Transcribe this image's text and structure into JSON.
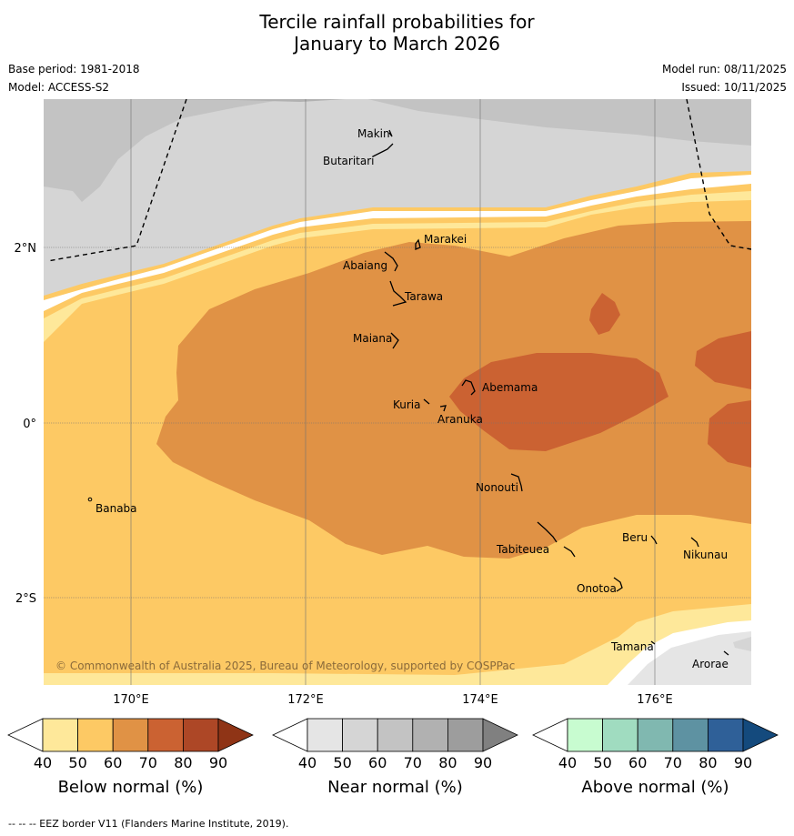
{
  "header": {
    "title_line1": "Tercile rainfall probabilities for",
    "title_line2": "January to March 2026",
    "base_period": "Base period: 1981-2018",
    "model": "Model: ACCESS-S2",
    "model_run": "Model run: 08/11/2025",
    "issued": "Issued: 10/11/2025"
  },
  "map": {
    "lat_labels": [
      "2°N",
      "0°",
      "2°S"
    ],
    "lon_labels": [
      "170°E",
      "172°E",
      "174°E",
      "176°E"
    ],
    "islands": [
      "Makin",
      "Butaritari",
      "Marakei",
      "Abaiang",
      "Tarawa",
      "Maiana",
      "Abemama",
      "Kuria",
      "Aranuka",
      "Banaba",
      "Nonouti",
      "Beru",
      "Tabiteuea",
      "Nikunau",
      "Onotoa",
      "Tamana",
      "Arorae"
    ],
    "copyright": "© Commonwealth of Australia 2025, Bureau of Meteorology, supported by COSPPac"
  },
  "colorbars": [
    {
      "title": "Below normal (%)",
      "ticks": [
        "40",
        "50",
        "60",
        "70",
        "80",
        "90"
      ],
      "colors": [
        "#ffffff",
        "#fee89a",
        "#fdc964",
        "#e09245",
        "#cb6232",
        "#ad4726",
        "#8f3416"
      ]
    },
    {
      "title": "Near normal (%)",
      "ticks": [
        "40",
        "50",
        "60",
        "70",
        "80",
        "90"
      ],
      "colors": [
        "#ffffff",
        "#e5e5e5",
        "#d5d5d5",
        "#c3c3c3",
        "#b1b1b1",
        "#9d9d9d",
        "#808080"
      ]
    },
    {
      "title": "Above normal (%)",
      "ticks": [
        "40",
        "50",
        "60",
        "70",
        "80",
        "90"
      ],
      "colors": [
        "#ffffff",
        "#c8fcd0",
        "#a0dcc0",
        "#80b8b0",
        "#5e92a2",
        "#2f6098",
        "#144a7d"
      ]
    }
  ],
  "footer": "--  --  -- EEZ border V11 (Flanders Marine Institute, 2019)."
}
